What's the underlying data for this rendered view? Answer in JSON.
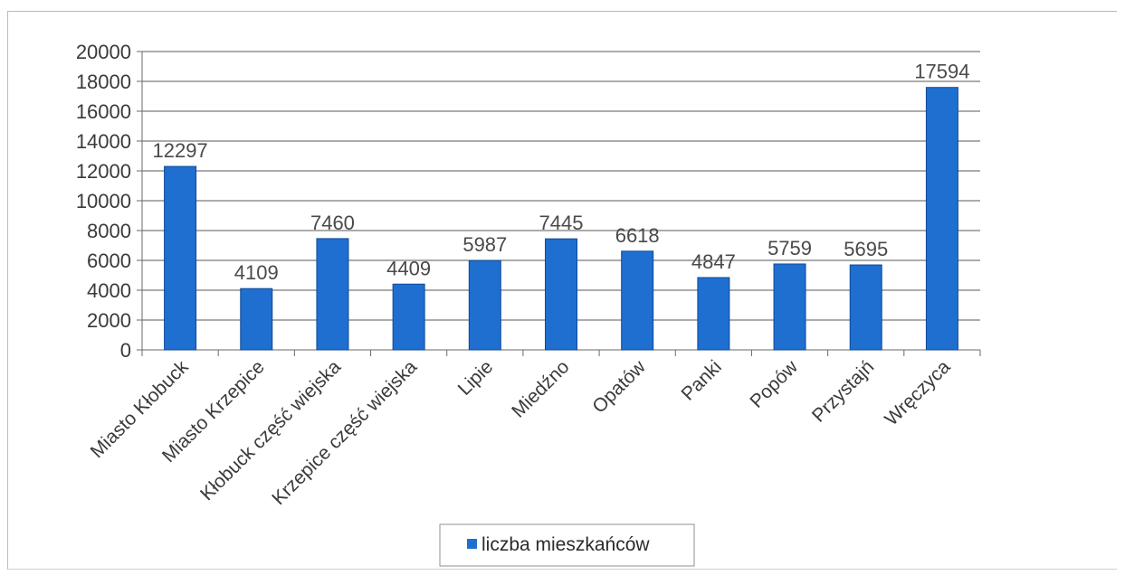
{
  "chart_data": {
    "type": "bar",
    "title": "",
    "xlabel": "",
    "ylabel": "",
    "categories": [
      "Miasto Kłobuck",
      "Miasto Krzepice",
      "Kłobuck część wiejska",
      "Krzepice część wiejska",
      "Lipie",
      "Miedźno",
      "Opatów",
      "Panki",
      "Popów",
      "Przystajń",
      "Wręczyca"
    ],
    "series": [
      {
        "name": "liczba mieszkańców",
        "values": [
          12297,
          4109,
          7460,
          4409,
          5987,
          7445,
          6618,
          4847,
          5759,
          5695,
          17594
        ],
        "data_labels": [
          "12297",
          "4109",
          "7460",
          "4409",
          "5987",
          "7445",
          "6618",
          "4847",
          "5759",
          "5695",
          "17594"
        ],
        "color": "#1f6fd1"
      }
    ],
    "ylim": [
      0,
      20000
    ],
    "yticks": [
      0,
      2000,
      4000,
      6000,
      8000,
      10000,
      12000,
      14000,
      16000,
      18000,
      20000
    ],
    "ytick_labels": [
      "0",
      "2000",
      "4000",
      "6000",
      "8000",
      "10000",
      "12000",
      "14000",
      "16000",
      "18000",
      "20000"
    ],
    "grid": true,
    "legend": {
      "position": "bottom",
      "entries": [
        "liczba mieszkańców"
      ]
    },
    "category_label_rotation": "-45deg"
  }
}
